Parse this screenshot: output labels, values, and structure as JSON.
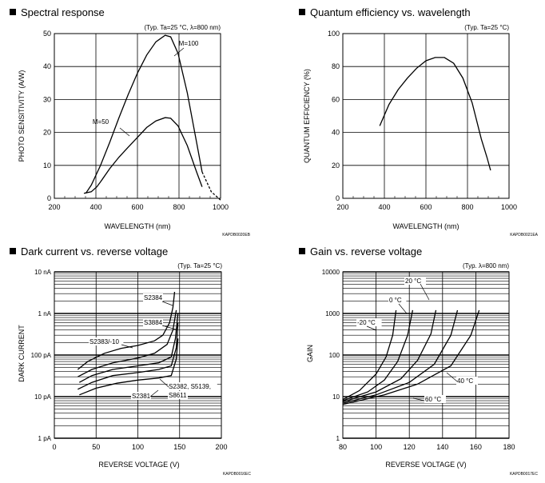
{
  "panels": [
    {
      "title": "Spectral response",
      "code": "KAPDB0020EB",
      "chart_data": {
        "type": "line",
        "condition": "(Typ. Ta=25 °C, λ=800 nm)",
        "xlabel": "WAVELENGTH (nm)",
        "ylabel": "PHOTO SENSITIVITY (A/W)",
        "xlim": [
          200,
          1100
        ],
        "ylim": [
          0,
          50
        ],
        "xticks": [
          "200",
          "400",
          "600",
          "800",
          "1000"
        ],
        "yticks": [
          "0",
          "10",
          "20",
          "30",
          "40",
          "50"
        ],
        "grid": "major",
        "series": [
          {
            "name": "M=100",
            "points": [
              [
                370,
                1.5
              ],
              [
                400,
                4
              ],
              [
                450,
                10
              ],
              [
                500,
                17
              ],
              [
                550,
                24.5
              ],
              [
                600,
                31.5
              ],
              [
                650,
                38
              ],
              [
                700,
                43.5
              ],
              [
                750,
                47.5
              ],
              [
                800,
                49.5
              ],
              [
                830,
                49
              ],
              [
                870,
                44
              ],
              [
                920,
                32
              ],
              [
                970,
                17
              ],
              [
                1000,
                8
              ],
              [
                1050,
                2
              ],
              [
                1100,
                -0.5
              ]
            ]
          },
          {
            "name": "M=50",
            "points": [
              [
                360,
                1.5
              ],
              [
                400,
                2
              ],
              [
                430,
                3.5
              ],
              [
                450,
                5
              ],
              [
                500,
                9
              ],
              [
                550,
                12.5
              ],
              [
                600,
                15.5
              ],
              [
                650,
                18.5
              ],
              [
                700,
                21.5
              ],
              [
                750,
                23.5
              ],
              [
                800,
                24.5
              ],
              [
                830,
                24.3
              ],
              [
                870,
                22
              ],
              [
                920,
                16
              ],
              [
                970,
                8
              ],
              [
                1000,
                3.5
              ]
            ]
          }
        ]
      }
    },
    {
      "title": "Quantum efficiency vs. wavelength",
      "code": "KAPDB0021EA",
      "chart_data": {
        "type": "line",
        "condition": "(Typ. Ta=25 °C)",
        "xlabel": "WAVELENGTH (nm)",
        "ylabel": "QUANTUM EFFICIENCY (%)",
        "xlim": [
          200,
          1100
        ],
        "ylim": [
          0,
          100
        ],
        "xticks": [
          "200",
          "400",
          "600",
          "800",
          "1000"
        ],
        "yticks": [
          "0",
          "20",
          "40",
          "60",
          "80",
          "100"
        ],
        "grid": "major",
        "series": [
          {
            "name": "",
            "points": [
              [
                400,
                44
              ],
              [
                450,
                57
              ],
              [
                500,
                66
              ],
              [
                550,
                73
              ],
              [
                600,
                79
              ],
              [
                650,
                83.5
              ],
              [
                700,
                85.5
              ],
              [
                750,
                85.5
              ],
              [
                800,
                82
              ],
              [
                850,
                73
              ],
              [
                900,
                58
              ],
              [
                950,
                36
              ],
              [
                980,
                25
              ],
              [
                1000,
                17
              ]
            ]
          }
        ]
      }
    },
    {
      "title": "Dark current vs. reverse voltage",
      "code": "KAPDB0016EC",
      "chart_data": {
        "type": "line",
        "condition": "(Typ. Ta=25 °C)",
        "xlabel": "REVERSE VOLTAGE (V)",
        "ylabel": "DARK CURRENT",
        "xlim": [
          0,
          200
        ],
        "yscale": "log",
        "ylim_pA": [
          1,
          10000
        ],
        "xticks": [
          "0",
          "50",
          "100",
          "150",
          "200"
        ],
        "yticks": [
          "1 pA",
          "10 pA",
          "100 pA",
          "1 nA",
          "10 nA"
        ],
        "grid": "major+minor",
        "series": [
          {
            "name": "S2384",
            "points_pA": [
              [
                28,
                45
              ],
              [
                40,
                70
              ],
              [
                60,
                110
              ],
              [
                80,
                145
              ],
              [
                100,
                170
              ],
              [
                120,
                220
              ],
              [
                130,
                300
              ],
              [
                138,
                600
              ],
              [
                142,
                1400
              ],
              [
                144,
                3300
              ]
            ]
          },
          {
            "name": "S3884",
            "points_pA": [
              [
                28,
                30
              ],
              [
                45,
                45
              ],
              [
                70,
                65
              ],
              [
                100,
                85
              ],
              [
                120,
                110
              ],
              [
                135,
                180
              ],
              [
                142,
                400
              ],
              [
                146,
                1200
              ]
            ]
          },
          {
            "name": "S2383/-10",
            "points_pA": [
              [
                30,
                22
              ],
              [
                45,
                32
              ],
              [
                70,
                45
              ],
              [
                100,
                55
              ],
              [
                125,
                65
              ],
              [
                140,
                90
              ],
              [
                145,
                250
              ],
              [
                148,
                1000
              ]
            ]
          },
          {
            "name": "S2382, S5139, S8611",
            "points_pA": [
              [
                28,
                15
              ],
              [
                45,
                22
              ],
              [
                70,
                32
              ],
              [
                100,
                38
              ],
              [
                125,
                45
              ],
              [
                140,
                55
              ],
              [
                146,
                150
              ],
              [
                148,
                600
              ]
            ]
          },
          {
            "name": "S2381",
            "points_pA": [
              [
                30,
                11
              ],
              [
                50,
                16
              ],
              [
                75,
                21
              ],
              [
                100,
                25
              ],
              [
                125,
                28
              ],
              [
                140,
                32
              ],
              [
                146,
                80
              ],
              [
                148,
                250
              ]
            ]
          }
        ]
      }
    },
    {
      "title": "Gain vs. reverse voltage",
      "code": "KAPDB0017EC",
      "chart_data": {
        "type": "line",
        "condition": "(Typ. λ=800 nm)",
        "xlabel": "REVERSE VOLTAGE (V)",
        "ylabel": "GAIN",
        "xlim": [
          80,
          180
        ],
        "yscale": "log",
        "ylim": [
          1,
          10000
        ],
        "xticks": [
          "80",
          "100",
          "120",
          "140",
          "160",
          "180"
        ],
        "yticks": [
          "1",
          "10",
          "100",
          "1000",
          "10000"
        ],
        "grid": "major+minor",
        "series": [
          {
            "name": "-20 °C",
            "points": [
              [
                80,
                8.5
              ],
              [
                90,
                14
              ],
              [
                100,
                35
              ],
              [
                106,
                90
              ],
              [
                110,
                300
              ],
              [
                112,
                1200
              ]
            ]
          },
          {
            "name": "0 °C",
            "points": [
              [
                80,
                8
              ],
              [
                95,
                13
              ],
              [
                105,
                25
              ],
              [
                113,
                70
              ],
              [
                119,
                300
              ],
              [
                122,
                1200
              ]
            ]
          },
          {
            "name": "20 °C",
            "points": [
              [
                80,
                7.5
              ],
              [
                100,
                13
              ],
              [
                115,
                27
              ],
              [
                125,
                75
              ],
              [
                133,
                320
              ],
              [
                136,
                1200
              ]
            ]
          },
          {
            "name": "40 °C",
            "points": [
              [
                80,
                7
              ],
              [
                100,
                11
              ],
              [
                120,
                22
              ],
              [
                135,
                60
              ],
              [
                145,
                300
              ],
              [
                149,
                1200
              ]
            ]
          },
          {
            "name": "60 °C",
            "points": [
              [
                80,
                6.5
              ],
              [
                105,
                11
              ],
              [
                125,
                20
              ],
              [
                145,
                55
              ],
              [
                157,
                300
              ],
              [
                162,
                1200
              ]
            ]
          }
        ]
      }
    }
  ]
}
